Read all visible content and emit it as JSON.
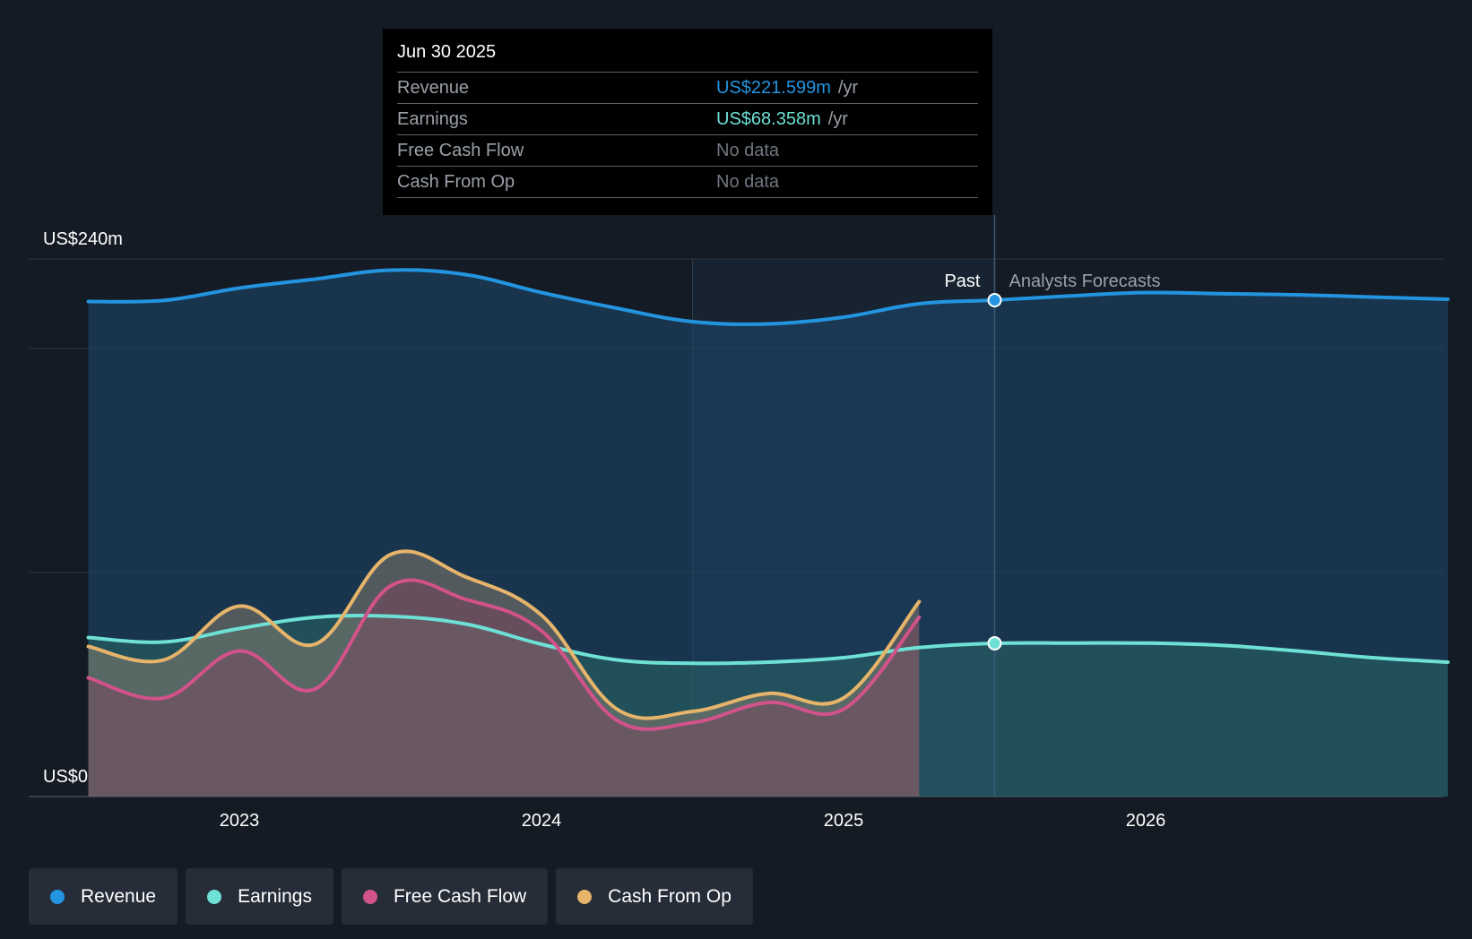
{
  "colors": {
    "background": "#151b24",
    "revenue": "#2394df",
    "earnings": "#6ee0d6",
    "free_cash_flow": "#d2528a",
    "cash_from_op": "#e6b46a",
    "grid": "#2c3440",
    "axis_text": "#ffffff",
    "muted_text": "#9aa0a8"
  },
  "tooltip": {
    "date": "Jun 30 2025",
    "rows": [
      {
        "label": "Revenue",
        "value": "US$221.599m",
        "unit": "/yr",
        "color": "#2394df"
      },
      {
        "label": "Earnings",
        "value": "US$68.358m",
        "unit": "/yr",
        "color": "#6ee0d6"
      },
      {
        "label": "Free Cash Flow",
        "value": "No data",
        "unit": "",
        "color": "#707680"
      },
      {
        "label": "Cash From Op",
        "value": "No data",
        "unit": "",
        "color": "#707680"
      }
    ]
  },
  "labels": {
    "past": "Past",
    "forecast": "Analysts Forecasts"
  },
  "legend": [
    {
      "label": "Revenue",
      "color": "#2394df"
    },
    {
      "label": "Earnings",
      "color": "#6ee0d6"
    },
    {
      "label": "Free Cash Flow",
      "color": "#d2528a"
    },
    {
      "label": "Cash From Op",
      "color": "#e6b46a"
    }
  ],
  "chart_data": {
    "type": "area",
    "title": "",
    "xlabel": "",
    "ylabel": "",
    "y_unit": "US$m",
    "ylim": [
      0,
      240
    ],
    "y_tick_labels": [
      {
        "value": 240,
        "label": "US$240m"
      },
      {
        "value": 0,
        "label": "US$0"
      }
    ],
    "gridlines": [
      240,
      200,
      100,
      0
    ],
    "x_ticks": [
      {
        "value": 2023.0,
        "label": "2023"
      },
      {
        "value": 2024.0,
        "label": "2024"
      },
      {
        "value": 2025.0,
        "label": "2025"
      },
      {
        "value": 2026.0,
        "label": "2026"
      }
    ],
    "xlim": [
      2022.3,
      2027.0
    ],
    "past_end": 2025.5,
    "highlight_start": 2024.5,
    "series": [
      {
        "name": "Revenue",
        "color": "#2394df",
        "x": [
          2022.5,
          2022.75,
          2023.0,
          2023.25,
          2023.5,
          2023.75,
          2024.0,
          2024.25,
          2024.5,
          2024.75,
          2025.0,
          2025.25,
          2025.5,
          2025.75,
          2026.0,
          2026.25,
          2026.5,
          2026.75,
          2027.0
        ],
        "y": [
          221,
          221.5,
          227,
          231,
          235,
          233,
          225,
          218,
          212,
          211,
          214,
          220,
          221.6,
          223.5,
          225,
          224.5,
          224,
          223,
          222
        ]
      },
      {
        "name": "Earnings",
        "color": "#6ee0d6",
        "x": [
          2022.5,
          2022.75,
          2023.0,
          2023.25,
          2023.5,
          2023.75,
          2024.0,
          2024.25,
          2024.5,
          2024.75,
          2025.0,
          2025.25,
          2025.5,
          2025.75,
          2026.0,
          2026.25,
          2026.5,
          2026.75,
          2027.0
        ],
        "y": [
          71,
          69,
          75,
          80,
          80.5,
          77,
          68,
          61,
          59.5,
          60,
          62,
          66.5,
          68.4,
          68.5,
          68.5,
          67.5,
          65,
          62,
          60
        ]
      },
      {
        "name": "Free Cash Flow",
        "color": "#d2528a",
        "x": [
          2022.5,
          2022.75,
          2023.0,
          2023.25,
          2023.5,
          2023.75,
          2024.0,
          2024.25,
          2024.5,
          2024.75,
          2025.0,
          2025.25
        ],
        "y": [
          53,
          44,
          65,
          48,
          94,
          88,
          74,
          34,
          33,
          42,
          39,
          80
        ]
      },
      {
        "name": "Cash From Op",
        "color": "#e6b46a",
        "x": [
          2022.5,
          2022.75,
          2023.0,
          2023.25,
          2023.5,
          2023.75,
          2024.0,
          2024.25,
          2024.5,
          2024.75,
          2025.0,
          2025.25
        ],
        "y": [
          67,
          61,
          85,
          68,
          108,
          98,
          81,
          39,
          38,
          46,
          44,
          87
        ]
      }
    ]
  }
}
